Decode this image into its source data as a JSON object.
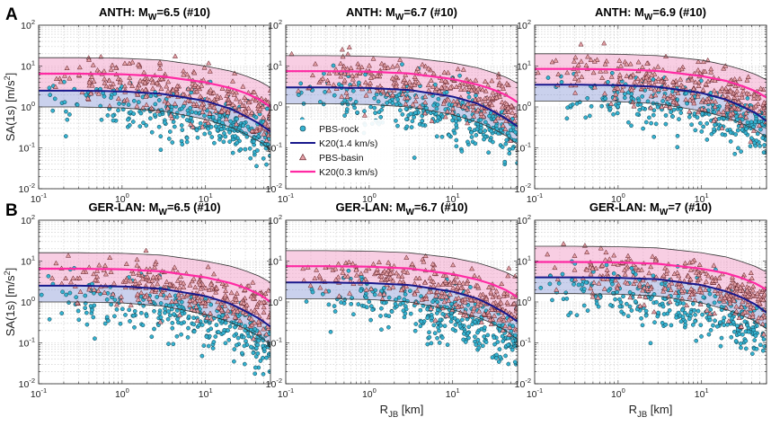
{
  "figure": {
    "row_labels": [
      "A",
      "B"
    ],
    "colors": {
      "rock_marker": "#35b2d0",
      "basin_marker": "#e4a0a6",
      "k20_rock": "#18188c",
      "k20_basin": "#ff2aa3",
      "band_rock": "#8a9ad8",
      "band_basin": "#f3a6cc",
      "grid": "#c8c8c8"
    }
  },
  "legend": {
    "items": [
      {
        "label": "PBS-rock",
        "kind": "marker-circle"
      },
      {
        "label": "K20(1.4 km/s)",
        "kind": "line-rock"
      },
      {
        "label": "PBS-basin",
        "kind": "marker-triangle"
      },
      {
        "label": "K20(0.3 km/s)",
        "kind": "line-basin"
      }
    ]
  },
  "chart_data": [
    {
      "type": "scatter",
      "panel_letter": "A",
      "title": {
        "prefix": "ANTH: M",
        "sub": "W",
        "suffix": "=6.5 (#10)"
      },
      "xlabel": {
        "main": "R",
        "sub": "JB",
        "unit": " [km]",
        "show": false
      },
      "ylabel": {
        "main": "SA(1s) [m/s",
        "sup": "2",
        "end": "]",
        "show": true
      },
      "xscale": "log",
      "yscale": "log",
      "xlim": [
        0.1,
        60
      ],
      "ylim": [
        0.01,
        100
      ],
      "x_ticks": [
        {
          "v": 0.1,
          "b": "10",
          "e": "-1"
        },
        {
          "v": 1,
          "b": "10",
          "e": "0"
        },
        {
          "v": 10,
          "b": "10",
          "e": "1"
        }
      ],
      "y_ticks": [
        {
          "v": 0.01,
          "b": "10",
          "e": "-2"
        },
        {
          "v": 0.1,
          "b": "10",
          "e": "-1"
        },
        {
          "v": 1,
          "b": "10",
          "e": "0"
        },
        {
          "v": 10,
          "b": "10",
          "e": "1"
        },
        {
          "v": 100,
          "b": "10",
          "e": "2"
        }
      ],
      "grid": true,
      "k20_rock_median": {
        "x": [
          0.1,
          0.3,
          1,
          3,
          10,
          20,
          30,
          45,
          60
        ],
        "y": [
          2.5,
          2.5,
          2.4,
          2.1,
          1.4,
          0.9,
          0.6,
          0.38,
          0.25
        ]
      },
      "k20_basin_median": {
        "x": [
          0.1,
          0.3,
          1,
          3,
          10,
          20,
          30,
          45,
          60
        ],
        "y": [
          6.5,
          6.5,
          6.3,
          5.6,
          4.0,
          2.9,
          2.2,
          1.5,
          1.0
        ]
      },
      "k20_band_upper": {
        "x": [
          0.1,
          0.3,
          1,
          3,
          10,
          20,
          30,
          45,
          60
        ],
        "y": [
          16,
          16,
          15.5,
          14,
          10,
          7.5,
          5.8,
          4.2,
          3.0
        ]
      },
      "k20_band_lower": {
        "x": [
          0.1,
          0.3,
          1,
          3,
          10,
          20,
          30,
          45,
          60
        ],
        "y": [
          1.0,
          1.0,
          0.95,
          0.8,
          0.5,
          0.32,
          0.22,
          0.14,
          0.09
        ]
      },
      "pbs_rock_summary": {
        "x_range": [
          0.1,
          60
        ],
        "y_median_near": 1.5,
        "y_median_far": 0.15,
        "y_min": 0.02
      },
      "pbs_basin_summary": {
        "x_range": [
          0.1,
          60
        ],
        "y_median_near": 5,
        "y_median_far": 0.6,
        "y_max": 30
      }
    },
    {
      "type": "scatter",
      "panel_letter": "",
      "title": {
        "prefix": "ANTH: M",
        "sub": "W",
        "suffix": "=6.7 (#10)"
      },
      "xlabel": {
        "main": "R",
        "sub": "JB",
        "unit": " [km]",
        "show": false
      },
      "ylabel": {
        "main": "SA(1s) [m/s",
        "sup": "2",
        "end": "]",
        "show": false
      },
      "xscale": "log",
      "yscale": "log",
      "xlim": [
        0.1,
        60
      ],
      "ylim": [
        0.01,
        100
      ],
      "x_ticks": [
        {
          "v": 0.1,
          "b": "10",
          "e": "-1"
        },
        {
          "v": 1,
          "b": "10",
          "e": "0"
        },
        {
          "v": 10,
          "b": "10",
          "e": "1"
        }
      ],
      "y_ticks": [
        {
          "v": 0.01,
          "b": "10",
          "e": "-2"
        },
        {
          "v": 0.1,
          "b": "10",
          "e": "-1"
        },
        {
          "v": 1,
          "b": "10",
          "e": "0"
        },
        {
          "v": 10,
          "b": "10",
          "e": "1"
        },
        {
          "v": 100,
          "b": "10",
          "e": "2"
        }
      ],
      "grid": true,
      "show_legend": true,
      "k20_rock_median": {
        "x": [
          0.1,
          0.3,
          1,
          3,
          10,
          20,
          30,
          45,
          60
        ],
        "y": [
          3.0,
          3.0,
          2.9,
          2.6,
          1.8,
          1.2,
          0.8,
          0.5,
          0.33
        ]
      },
      "k20_basin_median": {
        "x": [
          0.1,
          0.3,
          1,
          3,
          10,
          20,
          30,
          45,
          60
        ],
        "y": [
          7.5,
          7.5,
          7.3,
          6.6,
          4.8,
          3.5,
          2.7,
          1.9,
          1.3
        ]
      },
      "k20_band_upper": {
        "x": [
          0.1,
          0.3,
          1,
          3,
          10,
          20,
          30,
          45,
          60
        ],
        "y": [
          18,
          18,
          17.5,
          16,
          12,
          9,
          7,
          5.2,
          3.8
        ]
      },
      "k20_band_lower": {
        "x": [
          0.1,
          0.3,
          1,
          3,
          10,
          20,
          30,
          45,
          60
        ],
        "y": [
          1.2,
          1.2,
          1.15,
          1.0,
          0.65,
          0.42,
          0.3,
          0.19,
          0.12
        ]
      },
      "pbs_rock_summary": {
        "x_range": [
          0.1,
          60
        ],
        "y_median_near": 1.8,
        "y_median_far": 0.2,
        "y_min": 0.03
      },
      "pbs_basin_summary": {
        "x_range": [
          0.1,
          60
        ],
        "y_median_near": 6,
        "y_median_far": 0.8,
        "y_max": 40
      }
    },
    {
      "type": "scatter",
      "panel_letter": "",
      "title": {
        "prefix": "ANTH: M",
        "sub": "W",
        "suffix": "=6.9 (#10)"
      },
      "xlabel": {
        "main": "R",
        "sub": "JB",
        "unit": " [km]",
        "show": false
      },
      "ylabel": {
        "main": "SA(1s) [m/s",
        "sup": "2",
        "end": "]",
        "show": false
      },
      "xscale": "log",
      "yscale": "log",
      "xlim": [
        0.1,
        60
      ],
      "ylim": [
        0.01,
        100
      ],
      "x_ticks": [
        {
          "v": 0.1,
          "b": "10",
          "e": "-1"
        },
        {
          "v": 1,
          "b": "10",
          "e": "0"
        },
        {
          "v": 10,
          "b": "10",
          "e": "1"
        }
      ],
      "y_ticks": [
        {
          "v": 0.01,
          "b": "10",
          "e": "-2"
        },
        {
          "v": 0.1,
          "b": "10",
          "e": "-1"
        },
        {
          "v": 1,
          "b": "10",
          "e": "0"
        },
        {
          "v": 10,
          "b": "10",
          "e": "1"
        },
        {
          "v": 100,
          "b": "10",
          "e": "2"
        }
      ],
      "grid": true,
      "k20_rock_median": {
        "x": [
          0.1,
          0.3,
          1,
          3,
          10,
          20,
          30,
          45,
          60
        ],
        "y": [
          3.5,
          3.5,
          3.4,
          3.1,
          2.2,
          1.5,
          1.05,
          0.7,
          0.45
        ]
      },
      "k20_basin_median": {
        "x": [
          0.1,
          0.3,
          1,
          3,
          10,
          20,
          30,
          45,
          60
        ],
        "y": [
          8.5,
          8.5,
          8.3,
          7.6,
          5.7,
          4.3,
          3.3,
          2.4,
          1.7
        ]
      },
      "k20_band_upper": {
        "x": [
          0.1,
          0.3,
          1,
          3,
          10,
          20,
          30,
          45,
          60
        ],
        "y": [
          20,
          20,
          19.5,
          18,
          14,
          10.5,
          8.3,
          6.2,
          4.6
        ]
      },
      "k20_band_lower": {
        "x": [
          0.1,
          0.3,
          1,
          3,
          10,
          20,
          30,
          45,
          60
        ],
        "y": [
          1.4,
          1.4,
          1.35,
          1.2,
          0.8,
          0.55,
          0.4,
          0.27,
          0.18
        ]
      },
      "pbs_rock_summary": {
        "x_range": [
          0.1,
          60
        ],
        "y_median_near": 2,
        "y_median_far": 0.3,
        "y_min": 0.06
      },
      "pbs_basin_summary": {
        "x_range": [
          0.1,
          60
        ],
        "y_median_near": 7,
        "y_median_far": 1,
        "y_max": 40
      }
    },
    {
      "type": "scatter",
      "panel_letter": "B",
      "title": {
        "prefix": "GER-LAN: M",
        "sub": "W",
        "suffix": "=6.5 (#10)"
      },
      "xlabel": {
        "main": "R",
        "sub": "JB",
        "unit": " [km]",
        "show": false
      },
      "ylabel": {
        "main": "SA(1s) [m/s",
        "sup": "2",
        "end": "]",
        "show": true
      },
      "xscale": "log",
      "yscale": "log",
      "xlim": [
        0.1,
        60
      ],
      "ylim": [
        0.01,
        100
      ],
      "x_ticks": [
        {
          "v": 0.1,
          "b": "10",
          "e": "-1"
        },
        {
          "v": 1,
          "b": "10",
          "e": "0"
        },
        {
          "v": 10,
          "b": "10",
          "e": "1"
        }
      ],
      "y_ticks": [
        {
          "v": 0.01,
          "b": "10",
          "e": "-2"
        },
        {
          "v": 0.1,
          "b": "10",
          "e": "-1"
        },
        {
          "v": 1,
          "b": "10",
          "e": "0"
        },
        {
          "v": 10,
          "b": "10",
          "e": "1"
        },
        {
          "v": 100,
          "b": "10",
          "e": "2"
        }
      ],
      "grid": true,
      "k20_rock_median": {
        "x": [
          0.1,
          0.3,
          1,
          3,
          10,
          20,
          30,
          45,
          60
        ],
        "y": [
          2.5,
          2.5,
          2.4,
          2.1,
          1.4,
          0.9,
          0.6,
          0.38,
          0.25
        ]
      },
      "k20_basin_median": {
        "x": [
          0.1,
          0.3,
          1,
          3,
          10,
          20,
          30,
          45,
          60
        ],
        "y": [
          6.5,
          6.5,
          6.3,
          5.6,
          4.0,
          2.9,
          2.2,
          1.5,
          1.0
        ]
      },
      "k20_band_upper": {
        "x": [
          0.1,
          0.3,
          1,
          3,
          10,
          20,
          30,
          45,
          60
        ],
        "y": [
          16,
          16,
          15.5,
          14,
          10,
          7.5,
          5.8,
          4.2,
          3.0
        ]
      },
      "k20_band_lower": {
        "x": [
          0.1,
          0.3,
          1,
          3,
          10,
          20,
          30,
          45,
          60
        ],
        "y": [
          1.0,
          1.0,
          0.95,
          0.8,
          0.5,
          0.32,
          0.22,
          0.14,
          0.09
        ]
      },
      "pbs_rock_summary": {
        "x_range": [
          0.1,
          60
        ],
        "y_median_near": 1.2,
        "y_median_far": 0.08,
        "y_min": 0.012
      },
      "pbs_basin_summary": {
        "x_range": [
          0.1,
          60
        ],
        "y_median_near": 4,
        "y_median_far": 0.5,
        "y_max": 20
      }
    },
    {
      "type": "scatter",
      "panel_letter": "",
      "title": {
        "prefix": "GER-LAN: M",
        "sub": "W",
        "suffix": "=6.7 (#10)"
      },
      "xlabel": {
        "main": "R",
        "sub": "JB",
        "unit": " [km]",
        "show": true
      },
      "ylabel": {
        "main": "SA(1s) [m/s",
        "sup": "2",
        "end": "]",
        "show": false
      },
      "xscale": "log",
      "yscale": "log",
      "xlim": [
        0.1,
        60
      ],
      "ylim": [
        0.01,
        100
      ],
      "x_ticks": [
        {
          "v": 0.1,
          "b": "10",
          "e": "-1"
        },
        {
          "v": 1,
          "b": "10",
          "e": "0"
        },
        {
          "v": 10,
          "b": "10",
          "e": "1"
        }
      ],
      "y_ticks": [
        {
          "v": 0.01,
          "b": "10",
          "e": "-2"
        },
        {
          "v": 0.1,
          "b": "10",
          "e": "-1"
        },
        {
          "v": 1,
          "b": "10",
          "e": "0"
        },
        {
          "v": 10,
          "b": "10",
          "e": "1"
        },
        {
          "v": 100,
          "b": "10",
          "e": "2"
        }
      ],
      "grid": true,
      "k20_rock_median": {
        "x": [
          0.1,
          0.3,
          1,
          3,
          10,
          20,
          30,
          45,
          60
        ],
        "y": [
          3.0,
          3.0,
          2.9,
          2.6,
          1.8,
          1.2,
          0.8,
          0.5,
          0.33
        ]
      },
      "k20_basin_median": {
        "x": [
          0.1,
          0.3,
          1,
          3,
          10,
          20,
          30,
          45,
          60
        ],
        "y": [
          7.5,
          7.5,
          7.3,
          6.6,
          4.8,
          3.5,
          2.7,
          1.9,
          1.3
        ]
      },
      "k20_band_upper": {
        "x": [
          0.1,
          0.3,
          1,
          3,
          10,
          20,
          30,
          45,
          60
        ],
        "y": [
          18,
          18,
          17.5,
          16,
          12,
          9,
          7,
          5.2,
          3.8
        ]
      },
      "k20_band_lower": {
        "x": [
          0.1,
          0.3,
          1,
          3,
          10,
          20,
          30,
          45,
          60
        ],
        "y": [
          1.2,
          1.2,
          1.15,
          1.0,
          0.65,
          0.42,
          0.3,
          0.19,
          0.12
        ]
      },
      "pbs_rock_summary": {
        "x_range": [
          0.1,
          60
        ],
        "y_median_near": 1.4,
        "y_median_far": 0.1,
        "y_min": 0.02
      },
      "pbs_basin_summary": {
        "x_range": [
          0.1,
          60
        ],
        "y_median_near": 5,
        "y_median_far": 0.6,
        "y_max": 30
      }
    },
    {
      "type": "scatter",
      "panel_letter": "",
      "title": {
        "prefix": "GER-LAN: M",
        "sub": "W",
        "suffix": "=7 (#10)"
      },
      "xlabel": {
        "main": "R",
        "sub": "JB",
        "unit": " [km]",
        "show": true
      },
      "ylabel": {
        "main": "SA(1s) [m/s",
        "sup": "2",
        "end": "]",
        "show": false
      },
      "xscale": "log",
      "yscale": "log",
      "xlim": [
        0.1,
        60
      ],
      "ylim": [
        0.01,
        100
      ],
      "x_ticks": [
        {
          "v": 0.1,
          "b": "10",
          "e": "-1"
        },
        {
          "v": 1,
          "b": "10",
          "e": "0"
        },
        {
          "v": 10,
          "b": "10",
          "e": "1"
        }
      ],
      "y_ticks": [
        {
          "v": 0.01,
          "b": "10",
          "e": "-2"
        },
        {
          "v": 0.1,
          "b": "10",
          "e": "-1"
        },
        {
          "v": 1,
          "b": "10",
          "e": "0"
        },
        {
          "v": 10,
          "b": "10",
          "e": "1"
        },
        {
          "v": 100,
          "b": "10",
          "e": "2"
        }
      ],
      "grid": true,
      "k20_rock_median": {
        "x": [
          0.1,
          0.3,
          1,
          3,
          10,
          20,
          30,
          45,
          60
        ],
        "y": [
          4.0,
          4.0,
          3.9,
          3.6,
          2.6,
          1.8,
          1.3,
          0.85,
          0.55
        ]
      },
      "k20_basin_median": {
        "x": [
          0.1,
          0.3,
          1,
          3,
          10,
          20,
          30,
          45,
          60
        ],
        "y": [
          9.5,
          9.5,
          9.3,
          8.6,
          6.5,
          5.0,
          3.9,
          2.8,
          2.0
        ]
      },
      "k20_band_upper": {
        "x": [
          0.1,
          0.3,
          1,
          3,
          10,
          20,
          30,
          45,
          60
        ],
        "y": [
          23,
          23,
          22.5,
          21,
          16,
          12.5,
          9.8,
          7.3,
          5.4
        ]
      },
      "k20_band_lower": {
        "x": [
          0.1,
          0.3,
          1,
          3,
          10,
          20,
          30,
          45,
          60
        ],
        "y": [
          1.6,
          1.6,
          1.55,
          1.4,
          0.95,
          0.65,
          0.48,
          0.33,
          0.22
        ]
      },
      "pbs_rock_summary": {
        "x_range": [
          0.1,
          60
        ],
        "y_median_near": 1.8,
        "y_median_far": 0.15,
        "y_min": 0.03
      },
      "pbs_basin_summary": {
        "x_range": [
          0.1,
          60
        ],
        "y_median_near": 6,
        "y_median_far": 0.9,
        "y_max": 40
      }
    }
  ]
}
